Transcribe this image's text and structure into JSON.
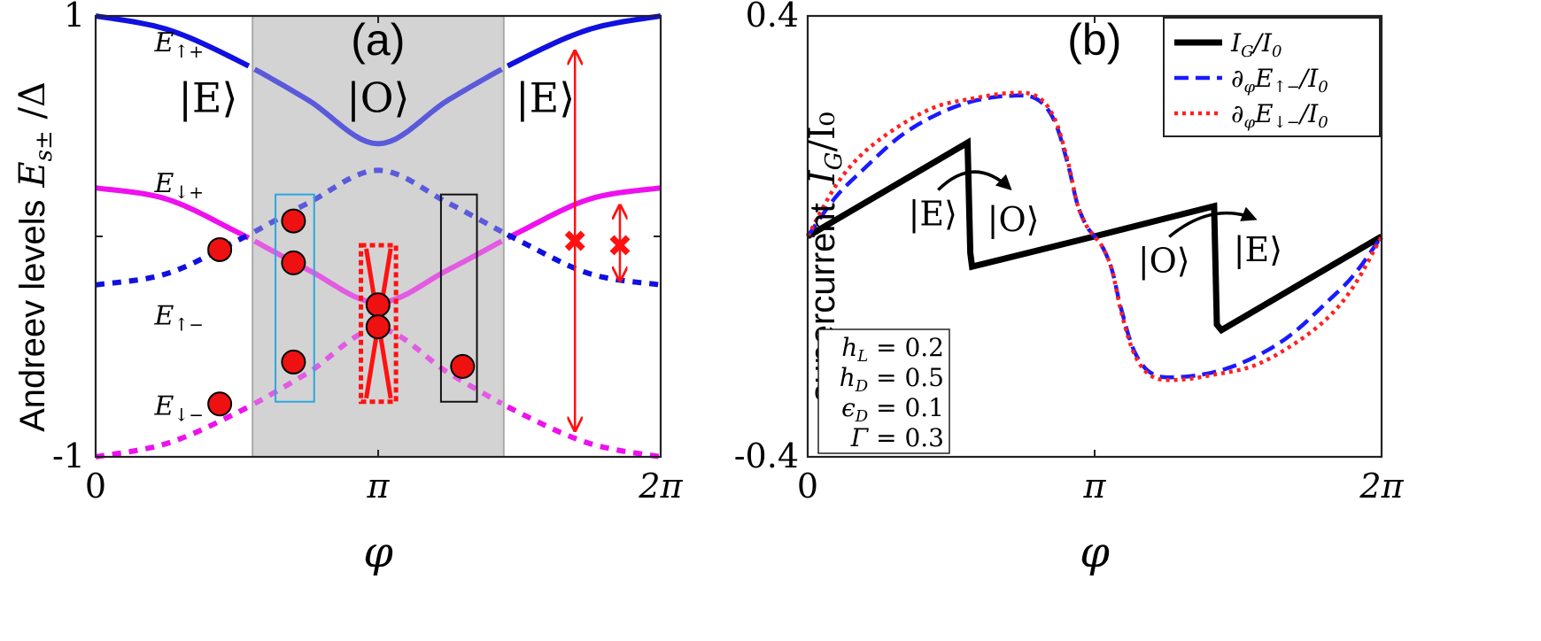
{
  "chart_data": [
    {
      "panel": "(a)",
      "type": "line",
      "ylabel_prefix": "Andreev levels",
      "ylabel_symbol": "E",
      "ylabel_sub": "s±",
      "ylabel_suffix": " /Δ",
      "xlabel": "φ",
      "xlim": [
        0,
        6.2832
      ],
      "ylim": [
        -1,
        1
      ],
      "x_ticks": [
        {
          "value": 0,
          "label": "0"
        },
        {
          "value": 3.1416,
          "label": "π"
        },
        {
          "value": 6.2832,
          "label": "2π"
        }
      ],
      "y_ticks": [
        {
          "value": 1,
          "label": "1"
        },
        {
          "value": -1,
          "label": "-1"
        }
      ],
      "shaded_region": {
        "x": [
          1.745,
          4.538
        ],
        "color": "#d3d3d3"
      },
      "region_labels": [
        {
          "text": "|E⟩",
          "x": 1.25,
          "y": 0.62
        },
        {
          "text": "|O⟩",
          "x": 3.14,
          "y": 0.62
        },
        {
          "text": "|E⟩",
          "x": 5.0,
          "y": 0.62
        }
      ],
      "series": [
        {
          "name": "E↑+",
          "sym": "E",
          "sub": "↑+",
          "color": "#1010e0",
          "x": [
            0,
            0.785,
            1.571,
            2.356,
            3.142,
            3.927,
            4.712,
            5.498,
            6.283
          ],
          "y": [
            1.0,
            0.94,
            0.8,
            0.62,
            0.42,
            0.62,
            0.8,
            0.94,
            1.0
          ],
          "solid_until": 1.745,
          "solid_from": 4.538,
          "dash_mid": false,
          "label_at": [
            0.36,
            0.88
          ]
        },
        {
          "name": "E↓+",
          "sym": "E",
          "sub": "↓+",
          "color": "#ee10ee",
          "x": [
            0,
            0.785,
            1.571,
            2.356,
            3.142,
            3.927,
            4.712,
            5.498,
            6.283
          ],
          "y": [
            0.22,
            0.17,
            0.02,
            -0.15,
            -0.3,
            -0.15,
            0.02,
            0.17,
            0.22
          ],
          "solid_until": 6.283,
          "solid_from": 0,
          "dash_mid": false,
          "label_at": [
            0.36,
            0.24
          ]
        },
        {
          "name": "E↑−",
          "sym": "E",
          "sub": "↑−",
          "color": "#1010e0",
          "x": [
            0,
            0.785,
            1.571,
            2.356,
            3.142,
            3.927,
            4.712,
            5.498,
            6.283
          ],
          "y": [
            -0.22,
            -0.17,
            -0.02,
            0.15,
            0.3,
            0.15,
            -0.02,
            -0.17,
            -0.22
          ],
          "solid_until": 0,
          "solid_from": 6.283,
          "dash_mid": true,
          "label_at": [
            0.36,
            -0.36
          ]
        },
        {
          "name": "E↓−",
          "sym": "E",
          "sub": "↓−",
          "color": "#ee10ee",
          "x": [
            0,
            0.785,
            1.571,
            2.356,
            3.142,
            3.927,
            4.712,
            5.498,
            6.283
          ],
          "y": [
            -1.0,
            -0.94,
            -0.8,
            -0.62,
            -0.42,
            -0.62,
            -0.8,
            -0.94,
            -1.0
          ],
          "solid_until": 0,
          "solid_from": 6.283,
          "dash_mid": true,
          "label_at": [
            0.36,
            -0.77
          ]
        }
      ],
      "occupied_states": [
        {
          "x": 1.38,
          "y": -0.06
        },
        {
          "x": 2.2,
          "y": 0.07
        },
        {
          "x": 2.2,
          "y": -0.12
        },
        {
          "x": 2.2,
          "y": -0.57
        },
        {
          "x": 1.38,
          "y": -0.76
        },
        {
          "x": 3.14,
          "y": -0.31
        },
        {
          "x": 3.14,
          "y": -0.41
        },
        {
          "x": 4.08,
          "y": -0.59
        }
      ],
      "boxes": [
        {
          "color": "#29a8e0",
          "dashed": false,
          "x": [
            2.0,
            2.43
          ],
          "y": [
            -0.75,
            0.19
          ]
        },
        {
          "color": "#ff1111",
          "dashed": true,
          "x": [
            2.95,
            3.34
          ],
          "y": [
            -0.75,
            -0.04
          ]
        },
        {
          "color": "#111111",
          "dashed": false,
          "x": [
            3.84,
            4.24
          ],
          "y": [
            -0.75,
            0.19
          ]
        }
      ],
      "transition_arrows": [
        {
          "x": 5.33,
          "y": [
            0.84,
            -0.88
          ],
          "cross_y": -0.02
        },
        {
          "x": 5.83,
          "y": [
            0.14,
            -0.2
          ],
          "cross_y": -0.04
        }
      ]
    },
    {
      "panel": "(b)",
      "type": "line",
      "ylabel_prefix": "supercurrent ",
      "ylabel_symbol": "I",
      "ylabel_sub": "G",
      "ylabel_suffix": "/I₀",
      "xlabel": "φ",
      "xlim": [
        0,
        6.2832
      ],
      "ylim": [
        -0.4,
        0.4
      ],
      "x_ticks": [
        {
          "value": 0,
          "label": "0"
        },
        {
          "value": 3.1416,
          "label": "π"
        },
        {
          "value": 6.2832,
          "label": "2π"
        }
      ],
      "y_ticks": [
        {
          "value": 0.4,
          "label": "0.4"
        },
        {
          "value": -0.4,
          "label": "-0.4"
        }
      ],
      "series": [
        {
          "name": "I_G/I_0",
          "legend": {
            "pre": "I",
            "sub": "G",
            "post": "/I",
            "sub2": "0"
          },
          "color": "#000000",
          "style": "solid",
          "x": [
            0,
            1.75,
            1.75,
            1.78,
            1.8,
            3.14,
            4.45,
            4.45,
            4.48,
            4.53,
            6.283
          ],
          "y": [
            0,
            0.17,
            0.17,
            -0.03,
            -0.055,
            0,
            0.055,
            0.055,
            -0.16,
            -0.17,
            0
          ]
        },
        {
          "name": "∂φE↑−/I0",
          "legend": {
            "pre": "∂",
            "sub": "φ",
            "post": "E",
            "sub2": "↑−",
            "tail": "/I",
            "sub3": "0"
          },
          "color": "#1a1aff",
          "style": "dash",
          "x": [
            0,
            0.3,
            0.6,
            1.0,
            1.4,
            1.8,
            2.2,
            2.5,
            2.7,
            2.85,
            2.95,
            3.05,
            3.14,
            3.23,
            3.33,
            3.43,
            3.58,
            3.78,
            4.08,
            4.48,
            4.88,
            5.28,
            5.68,
            5.98,
            6.283
          ],
          "y": [
            0,
            0.07,
            0.12,
            0.18,
            0.22,
            0.245,
            0.255,
            0.25,
            0.21,
            0.13,
            0.06,
            0.02,
            0,
            -0.02,
            -0.06,
            -0.13,
            -0.21,
            -0.25,
            -0.255,
            -0.245,
            -0.22,
            -0.18,
            -0.12,
            -0.07,
            0
          ]
        },
        {
          "name": "∂φE↓−/I0",
          "legend": {
            "pre": "∂",
            "sub": "φ",
            "post": "E",
            "sub2": "↓−",
            "tail": "/I",
            "sub3": "0"
          },
          "color": "#ff2020",
          "style": "dot",
          "x": [
            0,
            0.3,
            0.6,
            1.0,
            1.4,
            1.8,
            2.2,
            2.5,
            2.7,
            2.85,
            2.95,
            3.05,
            3.14,
            3.23,
            3.33,
            3.43,
            3.58,
            3.78,
            4.08,
            4.48,
            4.88,
            5.28,
            5.68,
            5.98,
            6.283
          ],
          "y": [
            0,
            0.09,
            0.15,
            0.2,
            0.235,
            0.25,
            0.26,
            0.255,
            0.215,
            0.135,
            0.06,
            0.02,
            0,
            -0.02,
            -0.06,
            -0.135,
            -0.215,
            -0.255,
            -0.26,
            -0.25,
            -0.235,
            -0.2,
            -0.15,
            -0.09,
            0
          ]
        }
      ],
      "annotations": [
        {
          "from": "|E⟩",
          "to": "|O⟩",
          "from_at": [
            1.37,
            0.02
          ],
          "to_at": [
            2.25,
            0.01
          ]
        },
        {
          "from": "|O⟩",
          "to": "|E⟩",
          "from_at": [
            3.9,
            -0.065
          ],
          "to_at": [
            4.93,
            -0.045
          ]
        }
      ],
      "params": [
        {
          "sym": "h",
          "sub": "L",
          "val": " = 0.2"
        },
        {
          "sym": "h",
          "sub": "D",
          "val": " = 0.5"
        },
        {
          "sym": "ϵ",
          "sub": "D",
          "val": " = 0.1"
        },
        {
          "sym": "Γ",
          "sub": "",
          "val": " = 0.3"
        }
      ]
    }
  ]
}
